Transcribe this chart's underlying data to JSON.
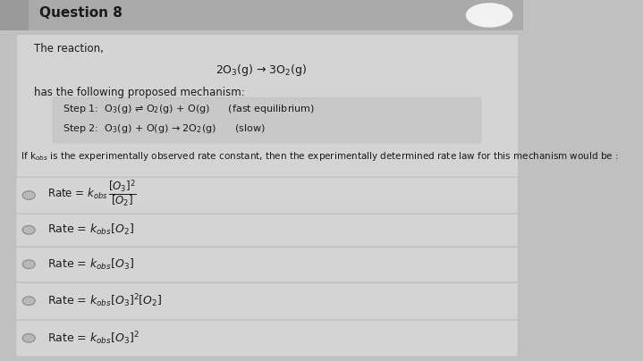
{
  "title": "Question 8",
  "bg_color": "#c0c0c0",
  "card_color": "#d4d4d4",
  "header_bg": "#aaaaaa",
  "text_color": "#1a1a1a",
  "intro_text": "The reaction,",
  "main_reaction": "2O$_3$(g) → 3O$_2$(g)",
  "mechanism_intro": "has the following proposed mechanism:",
  "step1": "Step 1:  O$_3$(g) ⇌ O$_2$(g) + O(g)      (fast equilibrium)",
  "step2": "Step 2:  O$_3$(g) + O(g) → 2O$_2$(g)      (slow)",
  "question_text": "If k$_{obs}$ is the experimentally observed rate constant, then the experimentally determined rate law for this mechanism would be :",
  "option_texts": [
    "Rate = $k_{obs}\\,\\dfrac{[O_3]^2}{[O_2]}$",
    "Rate = $k_{obs}[O_2]$",
    "Rate = $k_{obs}[O_3]$",
    "Rate = $k_{obs}[O_3]^2[O_2]$",
    "Rate = $k_{obs}[O_3]^2$"
  ],
  "figsize": [
    7.19,
    4.04
  ],
  "dpi": 100
}
